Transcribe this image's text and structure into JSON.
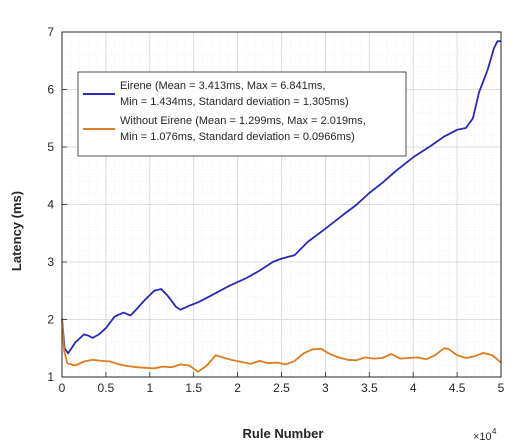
{
  "chart_data": {
    "type": "line",
    "xlabel": "Rule Number",
    "ylabel": "Latency (ms)",
    "xlim": [
      0,
      50000
    ],
    "ylim": [
      1,
      7
    ],
    "x_ticks": [
      0,
      5000,
      10000,
      15000,
      20000,
      25000,
      30000,
      35000,
      40000,
      45000,
      50000
    ],
    "x_tick_labels": [
      "0",
      "0.5",
      "1",
      "1.5",
      "2",
      "2.5",
      "3",
      "3.5",
      "4",
      "4.5",
      "5"
    ],
    "x_exponent_base": "×10",
    "x_exponent_power": "4",
    "y_ticks": [
      1,
      2,
      3,
      4,
      5,
      6,
      7
    ],
    "y_tick_labels": [
      "1",
      "2",
      "3",
      "4",
      "5",
      "6",
      "7"
    ],
    "grid": true,
    "minor_grid": true,
    "legend_position": "top-left",
    "series": [
      {
        "name_lines": [
          "Eirene (Mean = 3.413ms, Max = 6.841ms,",
          "Min = 1.434ms, Standard deviation = 1.305ms)"
        ],
        "color": "#2a2ab0",
        "points": [
          [
            0,
            2.02
          ],
          [
            300,
            1.5
          ],
          [
            700,
            1.41
          ],
          [
            1500,
            1.6
          ],
          [
            2500,
            1.74
          ],
          [
            3000,
            1.72
          ],
          [
            3500,
            1.68
          ],
          [
            4200,
            1.74
          ],
          [
            5000,
            1.85
          ],
          [
            6000,
            2.05
          ],
          [
            7000,
            2.12
          ],
          [
            7800,
            2.07
          ],
          [
            8500,
            2.18
          ],
          [
            9500,
            2.35
          ],
          [
            10500,
            2.5
          ],
          [
            11300,
            2.53
          ],
          [
            12000,
            2.42
          ],
          [
            13000,
            2.22
          ],
          [
            13500,
            2.17
          ],
          [
            14500,
            2.24
          ],
          [
            15500,
            2.3
          ],
          [
            17000,
            2.42
          ],
          [
            19000,
            2.58
          ],
          [
            21000,
            2.72
          ],
          [
            22500,
            2.85
          ],
          [
            24000,
            3.0
          ],
          [
            25000,
            3.06
          ],
          [
            26500,
            3.12
          ],
          [
            28000,
            3.35
          ],
          [
            30000,
            3.58
          ],
          [
            32000,
            3.82
          ],
          [
            33500,
            3.99
          ],
          [
            35000,
            4.2
          ],
          [
            36500,
            4.38
          ],
          [
            38000,
            4.58
          ],
          [
            40000,
            4.82
          ],
          [
            42000,
            5.02
          ],
          [
            43500,
            5.18
          ],
          [
            45000,
            5.3
          ],
          [
            46000,
            5.33
          ],
          [
            46800,
            5.5
          ],
          [
            47500,
            5.95
          ],
          [
            48500,
            6.35
          ],
          [
            49200,
            6.72
          ],
          [
            49600,
            6.84
          ],
          [
            50000,
            6.84
          ]
        ]
      },
      {
        "name_lines": [
          "Without Eirene (Mean = 1.299ms, Max = 2.019ms,",
          "Min = 1.076ms, Standard deviation = 0.0966ms)"
        ],
        "color": "#e07b1f",
        "points": [
          [
            0,
            2.02
          ],
          [
            250,
            1.45
          ],
          [
            600,
            1.24
          ],
          [
            1500,
            1.2
          ],
          [
            2500,
            1.27
          ],
          [
            3500,
            1.3
          ],
          [
            4500,
            1.28
          ],
          [
            5500,
            1.27
          ],
          [
            6500,
            1.22
          ],
          [
            7500,
            1.19
          ],
          [
            8500,
            1.17
          ],
          [
            9500,
            1.16
          ],
          [
            10500,
            1.15
          ],
          [
            11500,
            1.18
          ],
          [
            12500,
            1.17
          ],
          [
            13500,
            1.22
          ],
          [
            14500,
            1.2
          ],
          [
            15500,
            1.09
          ],
          [
            16500,
            1.2
          ],
          [
            17500,
            1.38
          ],
          [
            18500,
            1.33
          ],
          [
            19500,
            1.29
          ],
          [
            20500,
            1.26
          ],
          [
            21500,
            1.23
          ],
          [
            22500,
            1.28
          ],
          [
            23500,
            1.24
          ],
          [
            24500,
            1.25
          ],
          [
            25500,
            1.22
          ],
          [
            26500,
            1.28
          ],
          [
            27500,
            1.41
          ],
          [
            28500,
            1.48
          ],
          [
            29500,
            1.49
          ],
          [
            30500,
            1.4
          ],
          [
            31500,
            1.34
          ],
          [
            32500,
            1.3
          ],
          [
            33500,
            1.29
          ],
          [
            34500,
            1.34
          ],
          [
            35500,
            1.32
          ],
          [
            36500,
            1.33
          ],
          [
            37500,
            1.4
          ],
          [
            38500,
            1.32
          ],
          [
            39500,
            1.33
          ],
          [
            40500,
            1.34
          ],
          [
            41500,
            1.31
          ],
          [
            42500,
            1.38
          ],
          [
            43500,
            1.5
          ],
          [
            44000,
            1.49
          ],
          [
            45000,
            1.38
          ],
          [
            46000,
            1.33
          ],
          [
            47000,
            1.36
          ],
          [
            48000,
            1.42
          ],
          [
            49000,
            1.38
          ],
          [
            50000,
            1.25
          ]
        ]
      }
    ]
  }
}
